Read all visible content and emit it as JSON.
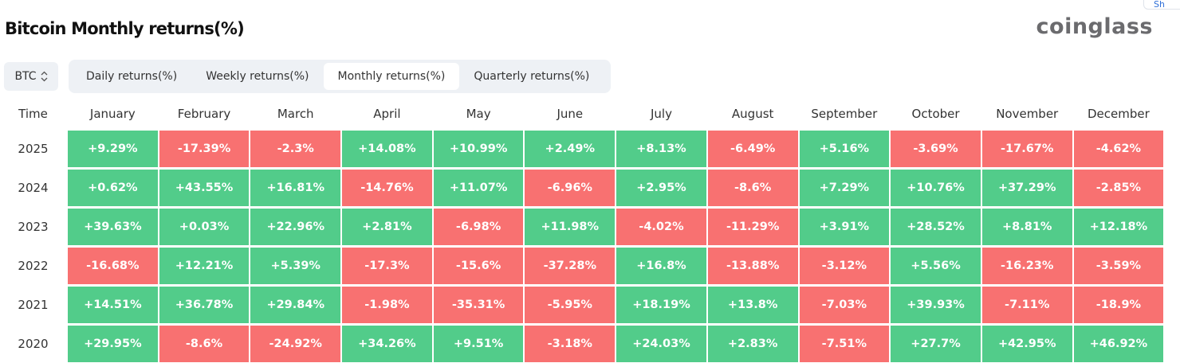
{
  "title": "Bitcoin Monthly returns(%)",
  "logo": "coinglass",
  "share_label": "Sh",
  "coin_select": {
    "value": "BTC",
    "icon": "chevron-up-down-icon"
  },
  "tabs": [
    {
      "label": "Daily returns(%)"
    },
    {
      "label": "Weekly returns(%)"
    },
    {
      "label": "Monthly returns(%)",
      "active": true
    },
    {
      "label": "Quarterly returns(%)"
    }
  ],
  "colors": {
    "positive": "#52cc8a",
    "negative": "#f87171"
  },
  "table": {
    "headers": [
      "Time",
      "January",
      "February",
      "March",
      "April",
      "May",
      "June",
      "July",
      "August",
      "September",
      "October",
      "November",
      "December"
    ],
    "rows": [
      {
        "year": "2025",
        "values": [
          "+9.29%",
          "-17.39%",
          "-2.3%",
          "+14.08%",
          "+10.99%",
          "+2.49%",
          "+8.13%",
          "-6.49%",
          "+5.16%",
          "-3.69%",
          "-17.67%",
          "-4.62%"
        ]
      },
      {
        "year": "2024",
        "values": [
          "+0.62%",
          "+43.55%",
          "+16.81%",
          "-14.76%",
          "+11.07%",
          "-6.96%",
          "+2.95%",
          "-8.6%",
          "+7.29%",
          "+10.76%",
          "+37.29%",
          "-2.85%"
        ]
      },
      {
        "year": "2023",
        "values": [
          "+39.63%",
          "+0.03%",
          "+22.96%",
          "+2.81%",
          "-6.98%",
          "+11.98%",
          "-4.02%",
          "-11.29%",
          "+3.91%",
          "+28.52%",
          "+8.81%",
          "+12.18%"
        ]
      },
      {
        "year": "2022",
        "values": [
          "-16.68%",
          "+12.21%",
          "+5.39%",
          "-17.3%",
          "-15.6%",
          "-37.28%",
          "+16.8%",
          "-13.88%",
          "-3.12%",
          "+5.56%",
          "-16.23%",
          "-3.59%"
        ]
      },
      {
        "year": "2021",
        "values": [
          "+14.51%",
          "+36.78%",
          "+29.84%",
          "-1.98%",
          "-35.31%",
          "-5.95%",
          "+18.19%",
          "+13.8%",
          "-7.03%",
          "+39.93%",
          "-7.11%",
          "-18.9%"
        ]
      },
      {
        "year": "2020",
        "values": [
          "+29.95%",
          "-8.6%",
          "-24.92%",
          "+34.26%",
          "+9.51%",
          "-3.18%",
          "+24.03%",
          "+2.83%",
          "-7.51%",
          "+27.7%",
          "+42.95%",
          "+46.92%"
        ]
      }
    ]
  }
}
